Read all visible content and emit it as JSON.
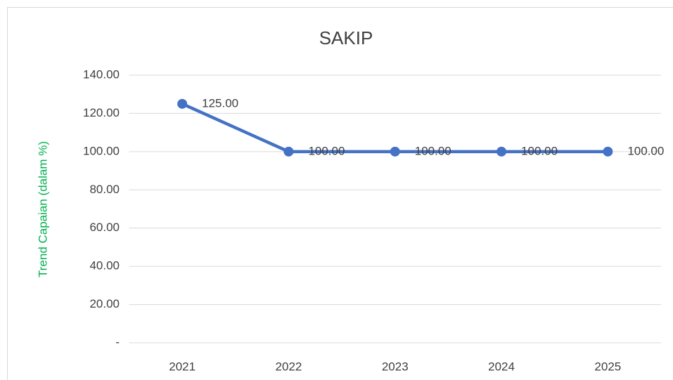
{
  "chart_data": {
    "type": "line",
    "title": "SAKIP",
    "y_axis_label": "Trend Capaian (dalam %)",
    "categories": [
      "2021",
      "2022",
      "2023",
      "2024",
      "2025"
    ],
    "series": [
      {
        "name": "SAKIP",
        "color": "#4472c4",
        "values": [
          125,
          100,
          100,
          100,
          100
        ],
        "value_labels": [
          "125.00",
          "100.00",
          "100.00",
          "100.00",
          "100.00"
        ]
      }
    ],
    "ylim": [
      0,
      140
    ],
    "yticks": [
      {
        "value": 0,
        "label": "-"
      },
      {
        "value": 20,
        "label": "20.00"
      },
      {
        "value": 40,
        "label": "40.00"
      },
      {
        "value": 60,
        "label": "60.00"
      },
      {
        "value": 80,
        "label": "80.00"
      },
      {
        "value": 100,
        "label": "100.00"
      },
      {
        "value": 120,
        "label": "120.00"
      },
      {
        "value": 140,
        "label": "140.00"
      }
    ],
    "grid": true,
    "y_axis_label_color": "#00b050"
  }
}
